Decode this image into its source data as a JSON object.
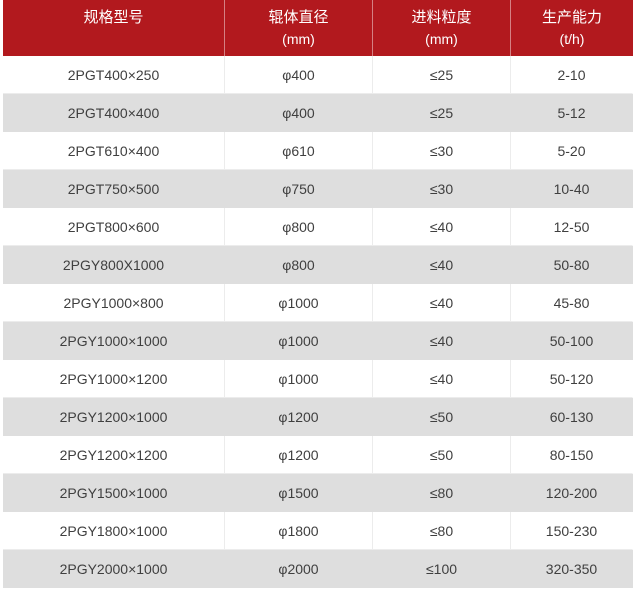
{
  "chart_data": {
    "type": "table",
    "columns": [
      {
        "label": "规格型号",
        "unit": ""
      },
      {
        "label": "辊体直径",
        "unit": "(mm)"
      },
      {
        "label": "进料粒度",
        "unit": "(mm)"
      },
      {
        "label": "生产能力",
        "unit": "(t/h)"
      }
    ],
    "rows": [
      [
        "2PGT400×250",
        "φ400",
        "≤25",
        "2-10"
      ],
      [
        "2PGT400×400",
        "φ400",
        "≤25",
        "5-12"
      ],
      [
        "2PGT610×400",
        "φ610",
        "≤30",
        "5-20"
      ],
      [
        "2PGT750×500",
        "φ750",
        "≤30",
        "10-40"
      ],
      [
        "2PGT800×600",
        "φ800",
        "≤40",
        "12-50"
      ],
      [
        "2PGY800X1000",
        "φ800",
        "≤40",
        "50-80"
      ],
      [
        "2PGY1000×800",
        "φ1000",
        "≤40",
        "45-80"
      ],
      [
        "2PGY1000×1000",
        "φ1000",
        "≤40",
        "50-100"
      ],
      [
        "2PGY1000×1200",
        "φ1000",
        "≤40",
        "50-120"
      ],
      [
        "2PGY1200×1000",
        "φ1200",
        "≤50",
        "60-130"
      ],
      [
        "2PGY1200×1200",
        "φ1200",
        "≤50",
        "80-150"
      ],
      [
        "2PGY1500×1000",
        "φ1500",
        "≤80",
        "120-200"
      ],
      [
        "2PGY1800×1000",
        "φ1800",
        "≤80",
        "150-230"
      ],
      [
        "2PGY2000×1000",
        "φ2000",
        "≤100",
        "320-350"
      ]
    ]
  },
  "colors": {
    "header_bg": "#b2191e",
    "header_text": "#ffffff",
    "row_bg": "#ffffff",
    "row_alt_bg": "#dedede",
    "cell_text": "#3f3f3f",
    "grid_line": "#ececec"
  }
}
